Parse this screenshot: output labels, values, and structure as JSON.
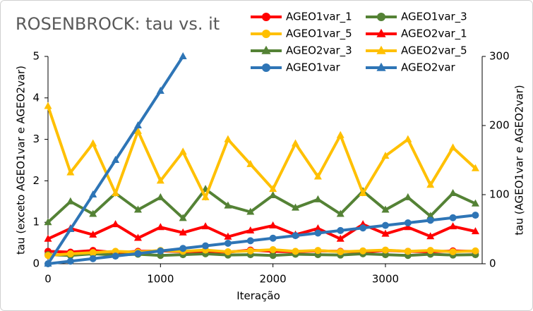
{
  "chart_data": {
    "type": "line",
    "title": "ROSENBROCK: tau vs. it",
    "x_label": "Iteração",
    "y_label": "tau (exceto AGEO1var e AGEO2var)",
    "y2_label": "tau (AGEO1var e AGEO2var)",
    "x": [
      0,
      200,
      400,
      600,
      800,
      1000,
      1200,
      1400,
      1600,
      1800,
      2000,
      2200,
      2400,
      2600,
      2800,
      3000,
      3200,
      3400,
      3600,
      3800
    ],
    "xlim": [
      0,
      3860
    ],
    "xticks": [
      0,
      1000,
      2000,
      3000
    ],
    "ylim": [
      0,
      5
    ],
    "yticks": [
      0,
      1,
      2,
      3,
      4,
      5
    ],
    "y2lim": [
      0,
      300
    ],
    "y2ticks": [
      0,
      100,
      200,
      300
    ],
    "series": [
      {
        "name": "AGEO1var_1",
        "color": "#ff0000",
        "marker": "circle",
        "values": [
          0.3,
          0.28,
          0.32,
          0.27,
          0.3,
          0.31,
          0.29,
          0.3,
          0.28,
          0.33,
          0.3,
          0.29,
          0.31,
          0.3,
          0.28,
          0.32,
          0.3,
          0.29,
          0.31,
          0.3
        ]
      },
      {
        "name": "AGEO1var_3",
        "color": "#548235",
        "marker": "circle",
        "values": [
          0.22,
          0.2,
          0.24,
          0.21,
          0.23,
          0.2,
          0.22,
          0.24,
          0.21,
          0.22,
          0.2,
          0.23,
          0.22,
          0.21,
          0.24,
          0.22,
          0.2,
          0.23,
          0.21,
          0.22
        ]
      },
      {
        "name": "AGEO1var_5",
        "color": "#ffc000",
        "marker": "circle",
        "values": [
          0.2,
          0.24,
          0.27,
          0.3,
          0.28,
          0.32,
          0.3,
          0.33,
          0.29,
          0.31,
          0.34,
          0.3,
          0.32,
          0.29,
          0.31,
          0.33,
          0.3,
          0.32,
          0.29,
          0.31
        ]
      },
      {
        "name": "AGEO2var_1",
        "color": "#ff0000",
        "marker": "triangle",
        "values": [
          0.6,
          0.85,
          0.7,
          0.95,
          0.62,
          0.88,
          0.75,
          0.9,
          0.65,
          0.8,
          0.92,
          0.7,
          0.85,
          0.6,
          0.95,
          0.72,
          0.88,
          0.66,
          0.9,
          0.78
        ]
      },
      {
        "name": "AGEO2var_3",
        "color": "#548235",
        "marker": "triangle",
        "values": [
          1.0,
          1.5,
          1.2,
          1.7,
          1.3,
          1.6,
          1.1,
          1.8,
          1.4,
          1.25,
          1.65,
          1.35,
          1.55,
          1.2,
          1.75,
          1.3,
          1.6,
          1.15,
          1.7,
          1.45
        ]
      },
      {
        "name": "AGEO2var_5",
        "color": "#ffc000",
        "marker": "triangle",
        "values": [
          3.8,
          2.2,
          2.9,
          1.7,
          3.2,
          2.0,
          2.7,
          1.6,
          3.0,
          2.4,
          1.8,
          2.9,
          2.1,
          3.1,
          1.7,
          2.6,
          3.0,
          1.9,
          2.8,
          2.3
        ]
      },
      {
        "name": "AGEO1var",
        "color": "#2e75b6",
        "marker": "circle",
        "axis": "y2",
        "values": [
          0,
          3.7,
          7.4,
          11.1,
          14.8,
          18.5,
          22.2,
          25.9,
          29.6,
          33.3,
          37,
          40.7,
          44.4,
          48.1,
          51.8,
          55.5,
          59.2,
          62.9,
          66.6,
          70.3
        ]
      },
      {
        "name": "AGEO2var",
        "color": "#2e75b6",
        "marker": "triangle",
        "axis": "y2",
        "values": [
          0,
          50,
          100,
          150,
          200,
          250,
          300,
          null,
          null,
          null,
          null,
          null,
          null,
          null,
          null,
          null,
          null,
          null,
          null,
          null
        ]
      }
    ],
    "legend": "top-right"
  }
}
